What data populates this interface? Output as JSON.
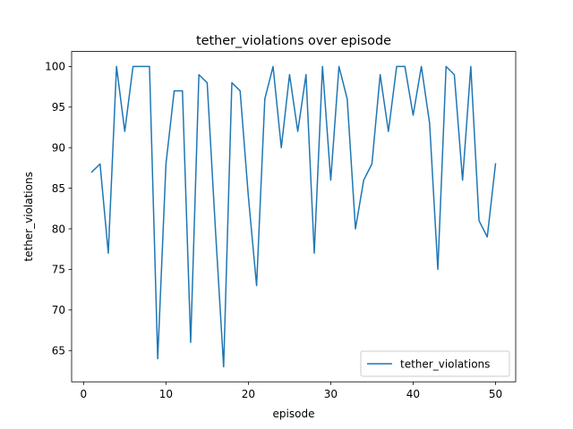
{
  "chart_data": {
    "type": "line",
    "title": "tether_violations over episode",
    "xlabel": "episode",
    "ylabel": "tether_violations",
    "xlim": [
      -1.45,
      52.45
    ],
    "ylim": [
      61.15,
      101.85
    ],
    "xticks": [
      0,
      10,
      20,
      30,
      40,
      50
    ],
    "yticks": [
      65,
      70,
      75,
      80,
      85,
      90,
      95,
      100
    ],
    "grid": false,
    "legend_position": "lower-right",
    "series": [
      {
        "name": "tether_violations",
        "color": "#1f77b4",
        "x": [
          1,
          2,
          3,
          4,
          5,
          6,
          7,
          8,
          9,
          10,
          11,
          12,
          13,
          14,
          15,
          16,
          17,
          18,
          19,
          20,
          21,
          22,
          23,
          24,
          25,
          26,
          27,
          28,
          29,
          30,
          31,
          32,
          33,
          34,
          35,
          36,
          37,
          38,
          39,
          40,
          41,
          42,
          43,
          44,
          45,
          46,
          47,
          48,
          49,
          50
        ],
        "y": [
          87,
          88,
          77,
          100,
          92,
          100,
          100,
          100,
          64,
          88,
          97,
          97,
          66,
          99,
          98,
          80,
          63,
          98,
          97,
          84,
          73,
          96,
          100,
          90,
          99,
          92,
          99,
          77,
          100,
          86,
          100,
          96,
          80,
          86,
          88,
          99,
          92,
          100,
          100,
          94,
          100,
          93,
          75,
          100,
          99,
          86,
          100,
          81,
          79,
          88
        ]
      }
    ]
  }
}
